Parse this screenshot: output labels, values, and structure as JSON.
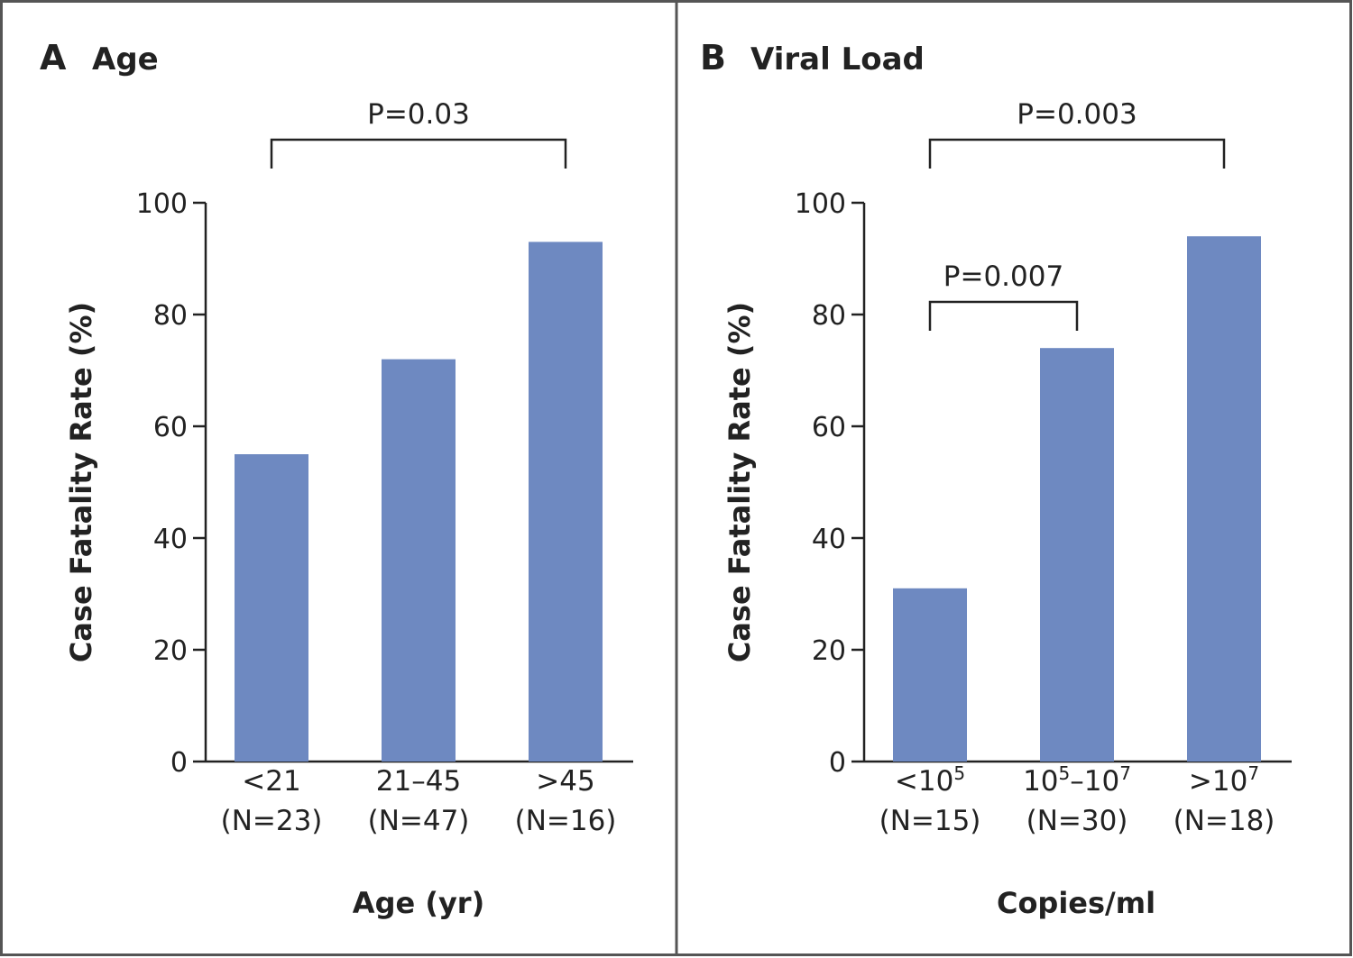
{
  "chart_data": [
    {
      "type": "bar",
      "panel_letter": "A",
      "title": "Age",
      "xlabel": "Age (yr)",
      "ylabel": "Case Fatality Rate (%)",
      "ylim": [
        0,
        100
      ],
      "yticks": [
        "0",
        "20",
        "40",
        "60",
        "80",
        "100"
      ],
      "categories": [
        {
          "line1": "<21",
          "sup": "",
          "line1_suffix": "",
          "line2": "(N=23)"
        },
        {
          "line1": "21–45",
          "sup": "",
          "line1_suffix": "",
          "line2": "(N=47)"
        },
        {
          "line1": ">45",
          "sup": "",
          "line1_suffix": "",
          "line2": "(N=16)"
        }
      ],
      "values": [
        55,
        72,
        93
      ],
      "color": "#6e89c1",
      "grid": false,
      "annotations": [
        {
          "label": "P=0.03",
          "from": 0,
          "to": 2
        }
      ]
    },
    {
      "type": "bar",
      "panel_letter": "B",
      "title": "Viral Load",
      "xlabel": "Copies/ml",
      "ylabel": "Case Fatality Rate (%)",
      "ylim": [
        0,
        100
      ],
      "yticks": [
        "0",
        "20",
        "40",
        "60",
        "80",
        "100"
      ],
      "categories": [
        {
          "parts": [
            [
              "<10",
              ""
            ],
            [
              "5",
              "sup"
            ]
          ],
          "line2": "(N=15)"
        },
        {
          "parts": [
            [
              "10",
              ""
            ],
            [
              "5",
              "sup"
            ],
            [
              "–10",
              ""
            ],
            [
              "7",
              "sup"
            ]
          ],
          "line2": "(N=30)"
        },
        {
          "parts": [
            [
              ">10",
              ""
            ],
            [
              "7",
              "sup"
            ]
          ],
          "line2": "(N=18)"
        }
      ],
      "values": [
        31,
        74,
        94
      ],
      "color": "#6e89c1",
      "grid": false,
      "annotations": [
        {
          "label": "P=0.003",
          "from": 0,
          "to": 2
        },
        {
          "label": "P=0.007",
          "from": 0,
          "to": 1
        }
      ]
    }
  ]
}
